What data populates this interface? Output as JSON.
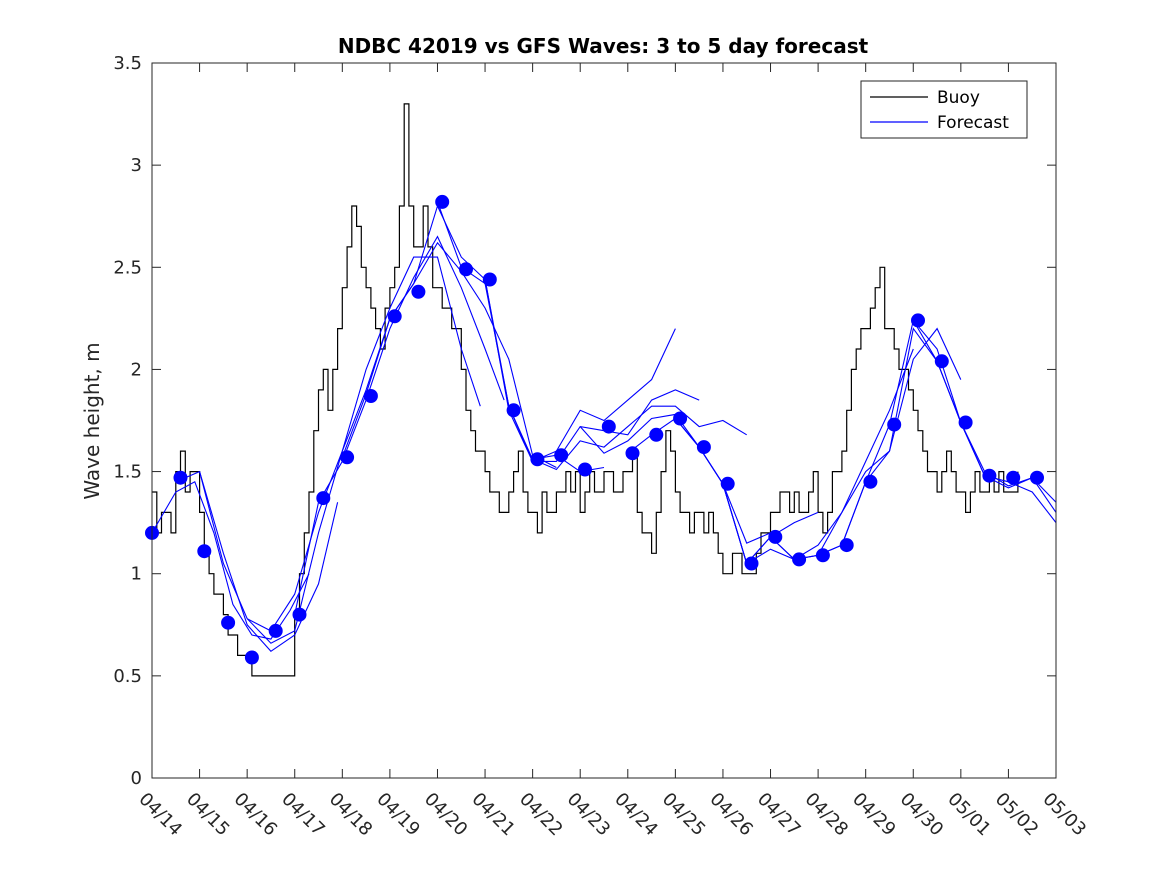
{
  "chart_data": {
    "type": "line",
    "title": "NDBC 42019 vs GFS Waves: 3 to 5 day forecast",
    "xlabel": "",
    "ylabel": "Wave height, m",
    "x_tick_labels": [
      "04/14",
      "04/15",
      "04/16",
      "04/17",
      "04/18",
      "04/19",
      "04/20",
      "04/21",
      "04/22",
      "04/23",
      "04/24",
      "04/25",
      "04/26",
      "04/27",
      "04/28",
      "04/29",
      "04/30",
      "05/01",
      "05/02",
      "05/03"
    ],
    "x_range_days": [
      0,
      19
    ],
    "ylim": [
      0,
      3.5
    ],
    "y_ticks": [
      0,
      0.5,
      1,
      1.5,
      2,
      2.5,
      3,
      3.5
    ],
    "y_tick_labels": [
      "0",
      "0.5",
      "1",
      "1.5",
      "2",
      "2.5",
      "3",
      "3.5"
    ],
    "legend": {
      "placement": "top-right",
      "entries": [
        "Buoy",
        "Forecast"
      ]
    },
    "colors": {
      "buoy": "#000000",
      "forecast": "#0000ff",
      "markers": "#0000ff"
    },
    "series": [
      {
        "name": "Buoy",
        "x": [
          0,
          0.1,
          0.2,
          0.3,
          0.4,
          0.5,
          0.6,
          0.7,
          0.8,
          0.9,
          1.0,
          1.1,
          1.2,
          1.3,
          1.4,
          1.5,
          1.6,
          1.7,
          1.8,
          1.9,
          2.0,
          2.1,
          2.2,
          2.3,
          2.4,
          2.5,
          2.6,
          2.7,
          2.8,
          2.9,
          3.0,
          3.1,
          3.2,
          3.3,
          3.4,
          3.5,
          3.6,
          3.7,
          3.8,
          3.9,
          4.0,
          4.1,
          4.2,
          4.3,
          4.4,
          4.5,
          4.6,
          4.7,
          4.8,
          4.9,
          5.0,
          5.1,
          5.2,
          5.3,
          5.4,
          5.5,
          5.6,
          5.7,
          5.8,
          5.9,
          6.0,
          6.1,
          6.2,
          6.3,
          6.4,
          6.5,
          6.6,
          6.7,
          6.8,
          6.9,
          7.0,
          7.1,
          7.2,
          7.3,
          7.4,
          7.5,
          7.6,
          7.7,
          7.8,
          7.9,
          8.0,
          8.1,
          8.2,
          8.3,
          8.4,
          8.5,
          8.6,
          8.7,
          8.8,
          8.9,
          9.0,
          9.1,
          9.2,
          9.3,
          9.4,
          9.5,
          9.6,
          9.7,
          9.8,
          9.9,
          10.0,
          10.1,
          10.2,
          10.3,
          10.4,
          10.5,
          10.6,
          10.7,
          10.8,
          10.9,
          11.0,
          11.1,
          11.2,
          11.3,
          11.4,
          11.5,
          11.6,
          11.7,
          11.8,
          11.9,
          12.0,
          12.1,
          12.2,
          12.3,
          12.4,
          12.5,
          12.6,
          12.7,
          12.8,
          12.9,
          13.0,
          13.1,
          13.2,
          13.3,
          13.4,
          13.5,
          13.6,
          13.7,
          13.8,
          13.9,
          14.0,
          14.1,
          14.2,
          14.3,
          14.4,
          14.5,
          14.6,
          14.7,
          14.8,
          14.9,
          15.0,
          15.1,
          15.2,
          15.3,
          15.4,
          15.5,
          15.6,
          15.7,
          15.8,
          15.9,
          16.0,
          16.1,
          16.2,
          16.3,
          16.4,
          16.5,
          16.6,
          16.7,
          16.8,
          16.9,
          17.0,
          17.1,
          17.2,
          17.3,
          17.4,
          17.5,
          17.6,
          17.7,
          17.8,
          17.9,
          18.0,
          18.1,
          18.2
        ],
        "values": [
          1.4,
          1.2,
          1.3,
          1.3,
          1.2,
          1.5,
          1.6,
          1.4,
          1.5,
          1.5,
          1.3,
          1.1,
          1.0,
          0.9,
          0.9,
          0.8,
          0.7,
          0.7,
          0.6,
          0.6,
          0.6,
          0.5,
          0.5,
          0.5,
          0.5,
          0.5,
          0.5,
          0.5,
          0.5,
          0.5,
          0.8,
          1.0,
          1.2,
          1.4,
          1.7,
          1.9,
          2.0,
          1.8,
          2.0,
          2.2,
          2.4,
          2.6,
          2.8,
          2.7,
          2.5,
          2.4,
          2.3,
          2.2,
          2.1,
          2.3,
          2.4,
          2.5,
          2.8,
          3.3,
          2.8,
          2.6,
          2.6,
          2.8,
          2.6,
          2.4,
          2.4,
          2.3,
          2.3,
          2.2,
          2.2,
          2.0,
          1.8,
          1.7,
          1.6,
          1.6,
          1.5,
          1.4,
          1.4,
          1.3,
          1.3,
          1.4,
          1.5,
          1.6,
          1.4,
          1.3,
          1.3,
          1.2,
          1.4,
          1.3,
          1.3,
          1.4,
          1.4,
          1.5,
          1.4,
          1.5,
          1.3,
          1.4,
          1.5,
          1.4,
          1.4,
          1.5,
          1.5,
          1.4,
          1.4,
          1.5,
          1.5,
          1.6,
          1.3,
          1.2,
          1.2,
          1.1,
          1.3,
          1.5,
          1.7,
          1.6,
          1.4,
          1.3,
          1.3,
          1.2,
          1.3,
          1.3,
          1.2,
          1.3,
          1.2,
          1.1,
          1.0,
          1.0,
          1.1,
          1.1,
          1.0,
          1.0,
          1.0,
          1.1,
          1.2,
          1.2,
          1.3,
          1.3,
          1.4,
          1.4,
          1.3,
          1.4,
          1.3,
          1.3,
          1.4,
          1.5,
          1.3,
          1.2,
          1.3,
          1.5,
          1.5,
          1.6,
          1.8,
          2.0,
          2.1,
          2.2,
          2.2,
          2.3,
          2.4,
          2.5,
          2.2,
          2.2,
          2.1,
          2.0,
          2.0,
          1.9,
          1.8,
          1.7,
          1.6,
          1.5,
          1.5,
          1.4,
          1.5,
          1.6,
          1.5,
          1.4,
          1.4,
          1.3,
          1.4,
          1.5,
          1.4,
          1.4,
          1.5,
          1.4,
          1.5,
          1.4,
          1.4,
          1.4,
          1.5
        ]
      },
      {
        "name": "Forecast",
        "runs": [
          {
            "x": [
              0,
              0.5,
              0.9,
              1.3,
              1.7,
              2.1,
              2.5,
              2.9,
              3.3
            ],
            "values": [
              1.2,
              1.4,
              1.45,
              1.2,
              0.85,
              0.7,
              0.68,
              0.82,
              1.0
            ]
          },
          {
            "x": [
              0.5,
              1.0,
              1.5,
              2.0,
              2.5,
              3.0,
              3.5,
              3.9
            ],
            "values": [
              1.45,
              1.5,
              1.1,
              0.75,
              0.62,
              0.7,
              0.95,
              1.35
            ]
          },
          {
            "x": [
              1.0,
              1.5,
              2.0,
              2.5,
              3.0,
              3.5,
              4.0,
              4.5,
              5.0
            ],
            "values": [
              1.5,
              1.05,
              0.78,
              0.66,
              0.72,
              1.2,
              1.6,
              1.9,
              2.25
            ]
          },
          {
            "x": [
              2.0,
              2.5,
              3.0,
              3.5,
              4.0,
              4.5,
              5.0,
              5.5,
              6.0,
              6.5,
              6.9
            ],
            "values": [
              0.78,
              0.72,
              0.9,
              1.3,
              1.6,
              2.0,
              2.3,
              2.55,
              2.55,
              2.1,
              1.82
            ]
          },
          {
            "x": [
              3.0,
              3.5,
              4.0,
              4.5,
              5.0,
              5.5,
              6.0,
              6.5,
              7.0,
              7.4
            ],
            "values": [
              0.8,
              1.35,
              1.55,
              1.85,
              2.2,
              2.45,
              2.65,
              2.4,
              2.1,
              1.85
            ]
          },
          {
            "x": [
              4.0,
              4.5,
              5.0,
              5.5,
              6.0,
              6.5,
              7.0,
              7.5,
              8.0,
              8.5
            ],
            "values": [
              1.57,
              1.88,
              2.25,
              2.42,
              2.62,
              2.48,
              2.3,
              2.05,
              1.58,
              1.52
            ]
          },
          {
            "x": [
              5.0,
              5.5,
              6.0,
              6.5,
              7.0,
              7.5,
              8.0,
              8.5,
              9.0,
              9.5
            ],
            "values": [
              2.25,
              2.42,
              2.8,
              2.55,
              2.44,
              1.82,
              1.56,
              1.58,
              1.5,
              1.52
            ]
          },
          {
            "x": [
              6.0,
              6.5,
              7.0,
              7.5,
              8.0,
              8.5,
              9.0,
              9.5,
              10.0,
              10.5,
              11.0
            ],
            "values": [
              2.82,
              2.5,
              2.42,
              1.82,
              1.55,
              1.6,
              1.8,
              1.75,
              1.85,
              1.95,
              2.2
            ]
          },
          {
            "x": [
              7.0,
              7.5,
              8.0,
              8.5,
              9.0,
              9.5,
              10.0,
              10.5,
              11.0,
              11.5
            ],
            "values": [
              2.44,
              1.8,
              1.55,
              1.55,
              1.72,
              1.7,
              1.68,
              1.85,
              1.9,
              1.85
            ]
          },
          {
            "x": [
              8.0,
              8.5,
              9.0,
              9.5,
              10.0,
              10.5,
              11.0,
              11.5,
              12.0,
              12.5
            ],
            "values": [
              1.56,
              1.51,
              1.65,
              1.62,
              1.72,
              1.82,
              1.82,
              1.72,
              1.75,
              1.68
            ]
          },
          {
            "x": [
              9.0,
              9.5,
              10.0,
              10.5,
              11.0,
              11.5,
              12.0,
              12.5,
              13.0
            ],
            "values": [
              1.72,
              1.59,
              1.65,
              1.76,
              1.78,
              1.62,
              1.44,
              1.15,
              1.2
            ]
          },
          {
            "x": [
              10.0,
              10.5,
              11.0,
              11.5,
              12.0,
              12.5,
              13.0,
              13.5,
              14.0
            ],
            "values": [
              1.59,
              1.68,
              1.76,
              1.62,
              1.44,
              1.05,
              1.18,
              1.25,
              1.3
            ]
          },
          {
            "x": [
              11.0,
              11.5,
              12.0,
              12.5,
              13.0,
              13.5,
              14.0,
              14.5,
              15.0
            ],
            "values": [
              1.76,
              1.62,
              1.44,
              1.05,
              1.12,
              1.07,
              1.09,
              1.14,
              1.45
            ]
          },
          {
            "x": [
              12.0,
              12.5,
              13.0,
              13.5,
              14.0,
              14.5,
              15.0,
              15.5,
              16.0
            ],
            "values": [
              1.44,
              1.05,
              1.18,
              1.07,
              1.14,
              1.3,
              1.55,
              1.8,
              2.1
            ]
          },
          {
            "x": [
              13.0,
              13.5,
              14.0,
              14.5,
              15.0,
              15.5,
              16.0,
              16.5,
              17.0
            ],
            "values": [
              1.18,
              1.07,
              1.09,
              1.3,
              1.5,
              1.6,
              2.05,
              2.2,
              1.95
            ]
          },
          {
            "x": [
              14.0,
              14.5,
              15.0,
              15.5,
              16.0,
              16.5,
              17.0,
              17.5,
              18.0,
              18.5,
              19.0
            ],
            "values": [
              1.09,
              1.14,
              1.45,
              1.73,
              2.24,
              2.1,
              1.74,
              1.48,
              1.42,
              1.47,
              1.3
            ]
          },
          {
            "x": [
              15.0,
              15.5,
              16.0,
              16.5,
              17.0,
              17.5,
              18.0,
              18.5,
              19.0
            ],
            "values": [
              1.45,
              1.6,
              2.2,
              2.04,
              1.74,
              1.48,
              1.45,
              1.4,
              1.25
            ]
          },
          {
            "x": [
              16.0,
              16.5,
              17.0,
              17.5,
              18.0,
              18.5,
              19.0
            ],
            "values": [
              2.24,
              2.04,
              1.74,
              1.5,
              1.43,
              1.47,
              1.35
            ]
          }
        ]
      },
      {
        "name": "",
        "marker": "circle",
        "x": [
          0,
          0.6,
          1.1,
          1.6,
          2.1,
          2.6,
          3.1,
          3.6,
          4.1,
          4.6,
          5.1,
          5.6,
          6.1,
          6.6,
          7.1,
          7.6,
          8.1,
          8.6,
          9.1,
          9.6,
          10.1,
          10.6,
          11.1,
          11.6,
          12.1,
          12.6,
          13.1,
          13.6,
          14.1,
          14.6,
          15.1,
          15.6,
          16.1,
          16.6,
          17.1,
          17.6,
          18.1,
          18.6
        ],
        "values": [
          1.2,
          1.47,
          1.11,
          0.76,
          0.59,
          0.72,
          0.8,
          1.37,
          1.57,
          1.87,
          2.26,
          2.38,
          2.82,
          2.49,
          2.44,
          1.8,
          1.56,
          1.58,
          1.51,
          1.72,
          1.59,
          1.68,
          1.76,
          1.62,
          1.44,
          1.05,
          1.18,
          1.07,
          1.09,
          1.14,
          1.45,
          1.73,
          2.24,
          2.04,
          1.74,
          1.48,
          1.47,
          1.47
        ]
      }
    ]
  }
}
